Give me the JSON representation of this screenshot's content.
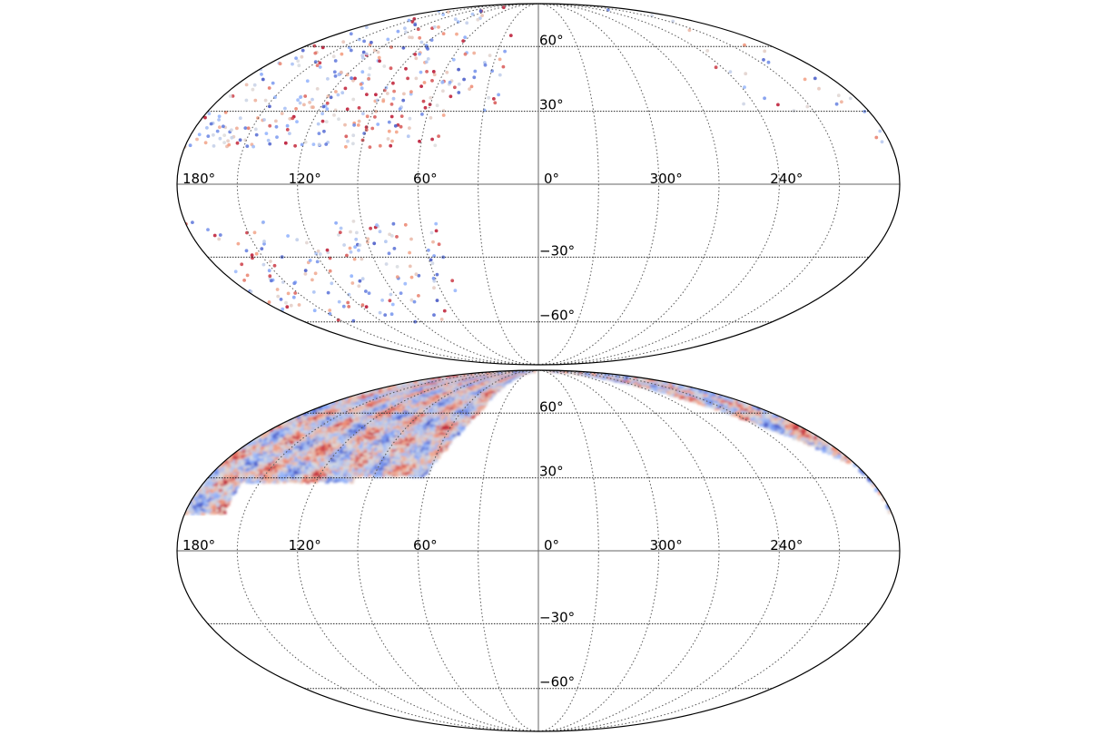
{
  "chart_data": [
    {
      "type": "scatter",
      "projection": "mollweide",
      "title": "",
      "xlabel": "",
      "ylabel": "",
      "lon_ticks": [
        "120°",
        "60°",
        "0°",
        "300°",
        "240°",
        "180°"
      ],
      "lat_ticks": [
        "60°",
        "30°",
        "−30°",
        "−60°"
      ],
      "lon_tick_values": [
        120,
        60,
        0,
        300,
        240,
        180
      ],
      "lat_tick_values": [
        60,
        30,
        -30,
        -60
      ],
      "grid": true,
      "colormap": "coolwarm",
      "colors": {
        "low": "#3b4cc0",
        "mid": "#dddddd",
        "high": "#b40426"
      },
      "coverage_regions": [
        {
          "lon": [
            50,
            180
          ],
          "lat": [
            15,
            90
          ],
          "density": 0.55
        },
        {
          "lon": [
            20,
            50
          ],
          "lat": [
            30,
            90
          ],
          "density": 0.25
        },
        {
          "lon": [
            190,
            250
          ],
          "lat": [
            30,
            90
          ],
          "density": 0.12
        },
        {
          "lon": [
            180,
            190
          ],
          "lat": [
            15,
            45
          ],
          "density": 0.25
        },
        {
          "lon": [
            50,
            180
          ],
          "lat": [
            -60,
            -15
          ],
          "density": 0.35
        }
      ]
    },
    {
      "type": "heatmap",
      "projection": "mollweide",
      "title": "",
      "xlabel": "",
      "ylabel": "",
      "lon_ticks": [
        "120°",
        "60°",
        "0°",
        "300°",
        "240°",
        "180°"
      ],
      "lat_ticks": [
        "60°",
        "30°",
        "−30°",
        "−60°"
      ],
      "lon_tick_values": [
        120,
        60,
        0,
        300,
        240,
        180
      ],
      "lat_tick_values": [
        60,
        30,
        -30,
        -60
      ],
      "grid": true,
      "colormap": "coolwarm",
      "colors": {
        "low": "#3b4cc0",
        "mid": "#dddddd",
        "high": "#b40426"
      },
      "coverage_regions": [
        {
          "lon": [
            40,
            180
          ],
          "lat": [
            15,
            90
          ]
        },
        {
          "lon": [
            180,
            245
          ],
          "lat": [
            15,
            90
          ]
        }
      ]
    }
  ]
}
